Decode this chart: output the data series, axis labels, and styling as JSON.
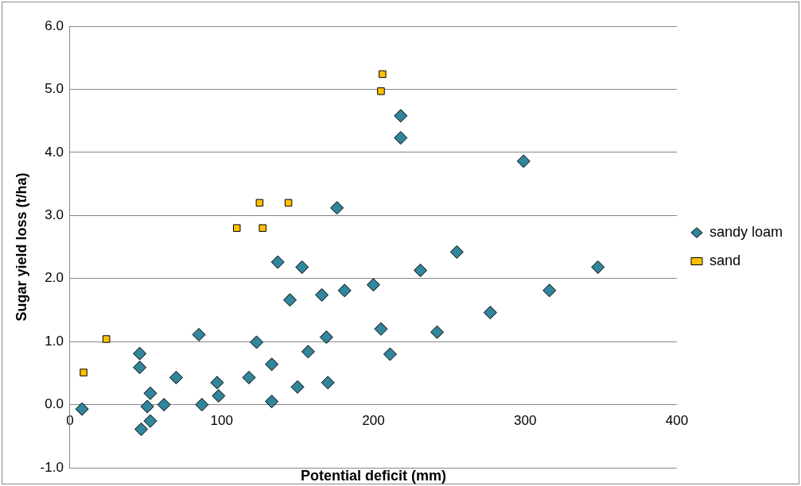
{
  "chart_data": {
    "type": "scatter",
    "xlabel": "Potential deficit (mm)",
    "ylabel": "Sugar yield loss (t/ha)",
    "xlim": [
      0,
      400
    ],
    "xticks": [
      0,
      100,
      200,
      300,
      400
    ],
    "ylim": [
      -1,
      6
    ],
    "yticks": [
      {
        "value": -1,
        "label": "-1.0"
      },
      {
        "value": 0,
        "label": "0.0"
      },
      {
        "value": 1,
        "label": "1.0"
      },
      {
        "value": 2,
        "label": "2.0"
      },
      {
        "value": 3,
        "label": "3.0"
      },
      {
        "value": 4,
        "label": "4.0"
      },
      {
        "value": 5,
        "label": "5.0"
      },
      {
        "value": 6,
        "label": "6.0"
      }
    ],
    "grid": "y",
    "legend": "right",
    "series": [
      {
        "name": "sandy loam",
        "color": "#31859c",
        "marker": "diamond",
        "x": [
          8,
          46,
          46,
          47,
          51,
          53,
          53,
          62,
          70,
          85,
          87,
          97,
          98,
          118,
          123,
          133,
          133,
          137,
          145,
          153,
          150,
          157,
          166,
          169,
          170,
          176,
          181,
          200,
          205,
          211,
          218,
          218,
          231,
          242,
          255,
          277,
          299,
          316,
          348
        ],
        "values": [
          -0.07,
          0.81,
          0.59,
          -0.39,
          -0.03,
          0.18,
          -0.26,
          0.0,
          0.43,
          1.11,
          0.0,
          0.35,
          0.14,
          0.43,
          0.99,
          0.64,
          0.05,
          2.26,
          1.66,
          2.18,
          0.28,
          0.84,
          1.74,
          1.07,
          0.35,
          3.12,
          1.81,
          1.9,
          1.2,
          0.8,
          4.58,
          4.23,
          2.13,
          1.15,
          2.42,
          1.46,
          3.86,
          1.81,
          2.18
        ]
      },
      {
        "name": "sand",
        "color": "#ffc000",
        "marker": "square",
        "x": [
          9,
          24,
          110,
          125,
          127,
          144,
          205,
          206
        ],
        "values": [
          0.51,
          1.04,
          2.8,
          3.2,
          2.8,
          3.2,
          4.97,
          5.24
        ]
      }
    ]
  }
}
